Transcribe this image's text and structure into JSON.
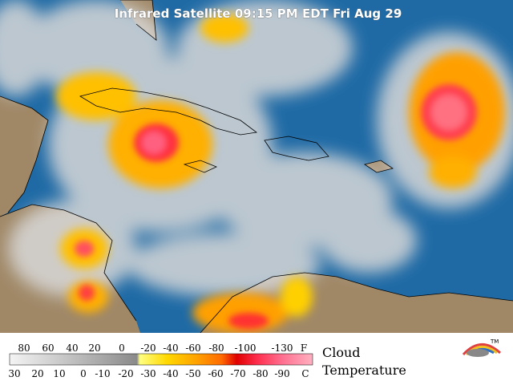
{
  "title": "Infrared Satellite 09:15 PM EDT Fri Aug 29",
  "legend": {
    "fahrenheit": {
      "labels": [
        80,
        60,
        40,
        20,
        0,
        -20,
        -40,
        -60,
        -80,
        -100,
        -130
      ],
      "unit": "F"
    },
    "celsius": {
      "labels": [
        30,
        20,
        10,
        0,
        -10,
        -20,
        -30,
        -40,
        -50,
        -60,
        -70,
        -80,
        -90
      ],
      "unit": "C"
    },
    "title": [
      "Cloud",
      "Temperature"
    ],
    "logo": "TM"
  }
}
